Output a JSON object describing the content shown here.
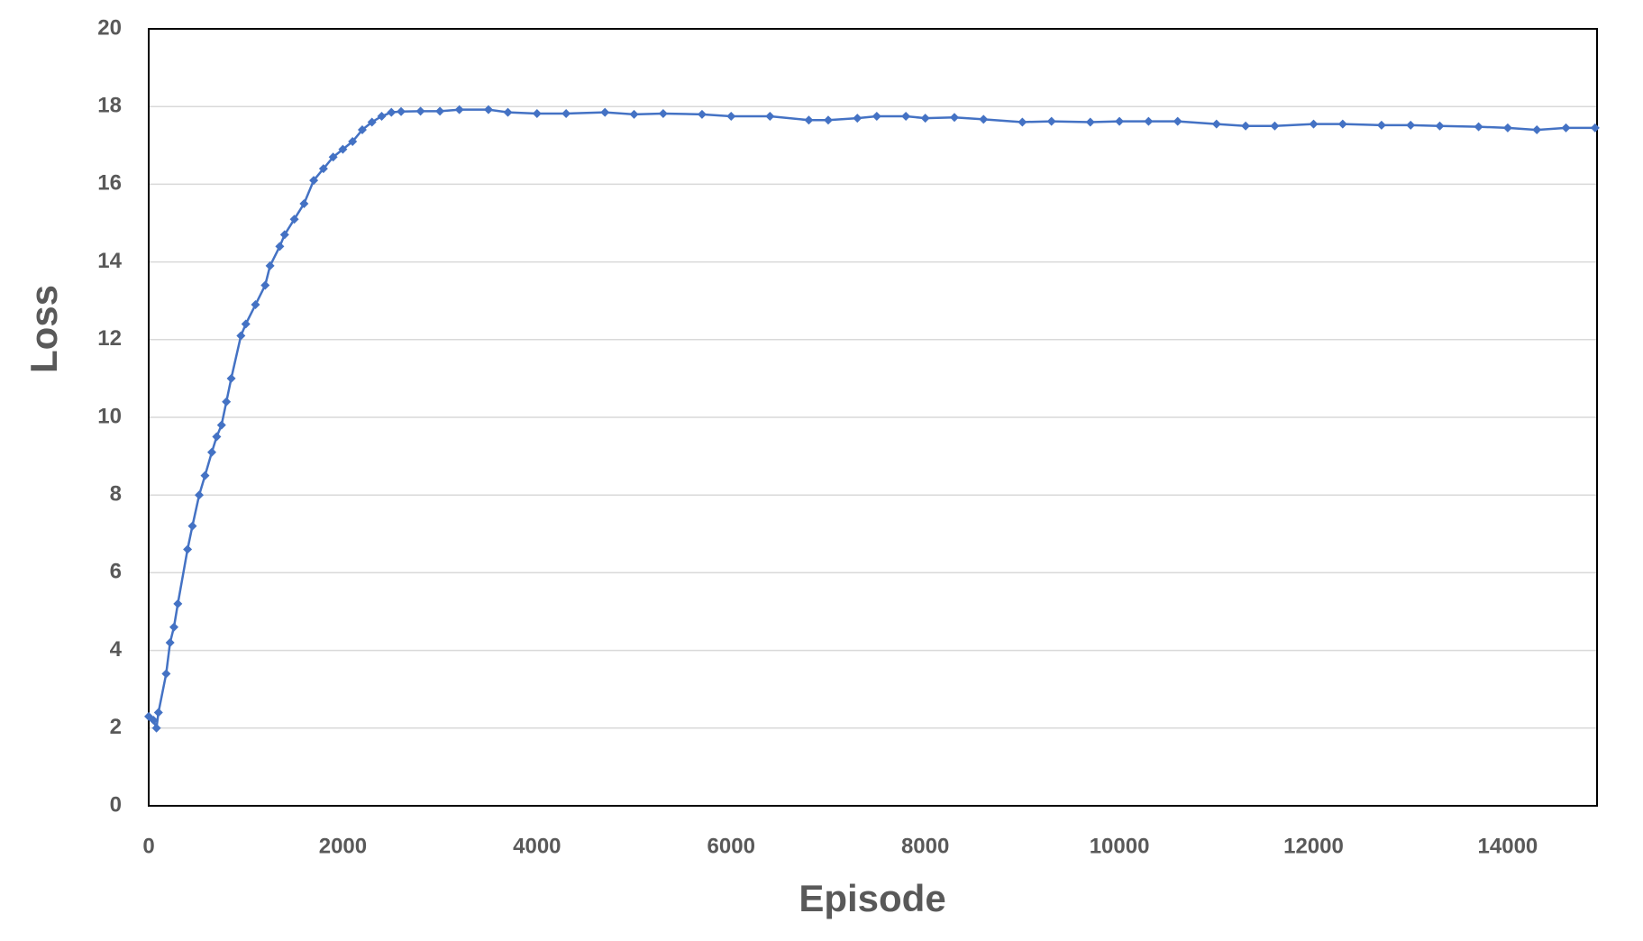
{
  "chart_data": {
    "type": "line",
    "xlabel": "Episode",
    "ylabel": "Loss",
    "x": [
      0,
      50,
      80,
      100,
      180,
      220,
      260,
      300,
      400,
      450,
      520,
      580,
      650,
      700,
      750,
      800,
      850,
      950,
      1000,
      1100,
      1200,
      1250,
      1350,
      1400,
      1500,
      1600,
      1700,
      1800,
      1900,
      2000,
      2100,
      2200,
      2300,
      2400,
      2500,
      2600,
      2800,
      3000,
      3200,
      3500,
      3700,
      4000,
      4300,
      4700,
      5000,
      5300,
      5700,
      6000,
      6400,
      6800,
      7000,
      7300,
      7500,
      7800,
      8000,
      8300,
      8600,
      9000,
      9300,
      9700,
      10000,
      10300,
      10600,
      11000,
      11300,
      11600,
      12000,
      12300,
      12700,
      13000,
      13300,
      13700,
      14000,
      14300,
      14600,
      14900
    ],
    "series": [
      {
        "color": "#4472c4",
        "values": [
          2.3,
          2.2,
          2.0,
          2.4,
          3.4,
          4.2,
          4.6,
          5.2,
          6.6,
          7.2,
          8.0,
          8.5,
          9.1,
          9.5,
          9.8,
          10.4,
          11.0,
          12.1,
          12.4,
          12.9,
          13.4,
          13.9,
          14.4,
          14.7,
          15.1,
          15.5,
          16.1,
          16.4,
          16.7,
          16.9,
          17.1,
          17.4,
          17.6,
          17.75,
          17.85,
          17.87,
          17.88,
          17.88,
          17.92,
          17.92,
          17.85,
          17.82,
          17.82,
          17.85,
          17.8,
          17.82,
          17.8,
          17.75,
          17.75,
          17.65,
          17.65,
          17.7,
          17.75,
          17.75,
          17.7,
          17.72,
          17.67,
          17.6,
          17.62,
          17.6,
          17.62,
          17.62,
          17.62,
          17.55,
          17.5,
          17.5,
          17.55,
          17.55,
          17.52,
          17.52,
          17.5,
          17.48,
          17.45,
          17.4,
          17.45,
          17.45
        ]
      }
    ],
    "xlim": [
      0,
      14920
    ],
    "ylim": [
      0,
      20
    ],
    "xticks": [
      0,
      2000,
      4000,
      6000,
      8000,
      10000,
      12000,
      14000
    ],
    "yticks": [
      0,
      2,
      4,
      6,
      8,
      10,
      12,
      14,
      16,
      18,
      20
    ],
    "grid": true
  }
}
